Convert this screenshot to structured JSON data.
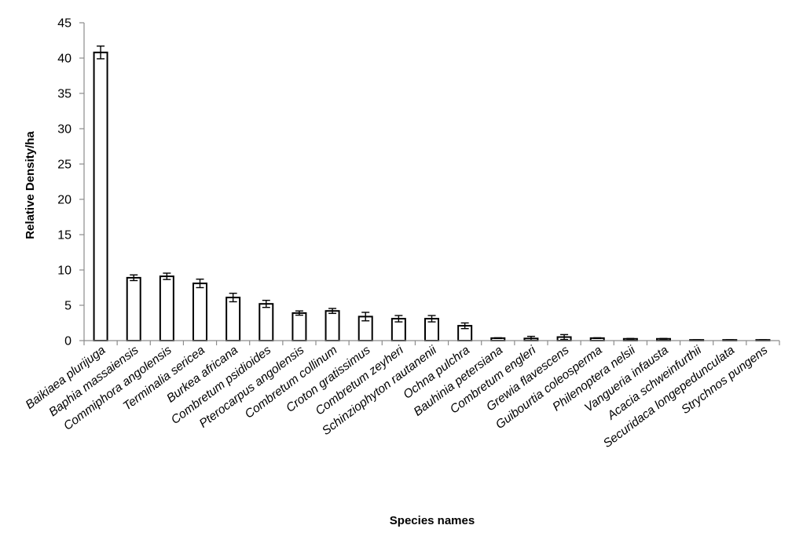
{
  "chart_data": {
    "type": "bar",
    "title": "",
    "xlabel": "Species names",
    "ylabel": "Relative Density/ha",
    "ylim": [
      0,
      45
    ],
    "yticks": [
      0,
      5,
      10,
      15,
      20,
      25,
      30,
      35,
      40,
      45
    ],
    "grid": false,
    "legend": "none",
    "categories": [
      "Baikiaea plurijuga",
      "Baphia massaiensis",
      "Commiphora angolensis",
      "Terminalia sericea",
      "Burkea africana",
      "Combretum psidioides",
      "Pterocarpus angolensis",
      "Combretum collinum",
      "Croton gratissimus",
      "Combretum zeyheri",
      "Schinziophyton rautanenii",
      "Ochna pulchra",
      "Bauhinia petersiana",
      "Combretum engleri",
      "Grewia flavescens",
      "Guibourtia coleosperma",
      "Philenoptera nelsii",
      "Vangueria infausta",
      "Acacia schweinfurthii",
      "Securidaca longepedunculata",
      "Strychnos pungens"
    ],
    "values": [
      40.8,
      8.9,
      9.1,
      8.1,
      6.1,
      5.2,
      3.9,
      4.2,
      3.4,
      3.1,
      3.1,
      2.1,
      0.35,
      0.3,
      0.5,
      0.35,
      0.25,
      0.25,
      0.1,
      0.1,
      0.1
    ],
    "errors": [
      0.9,
      0.4,
      0.45,
      0.6,
      0.6,
      0.5,
      0.3,
      0.35,
      0.6,
      0.45,
      0.45,
      0.4,
      0.05,
      0.3,
      0.35,
      0.05,
      0.05,
      0.05,
      0.03,
      0.03,
      0.03
    ],
    "colors": {
      "bar_fill": "#ffffff",
      "bar_stroke": "#000000",
      "axis": "#8c8c8c",
      "text": "#000000"
    }
  }
}
